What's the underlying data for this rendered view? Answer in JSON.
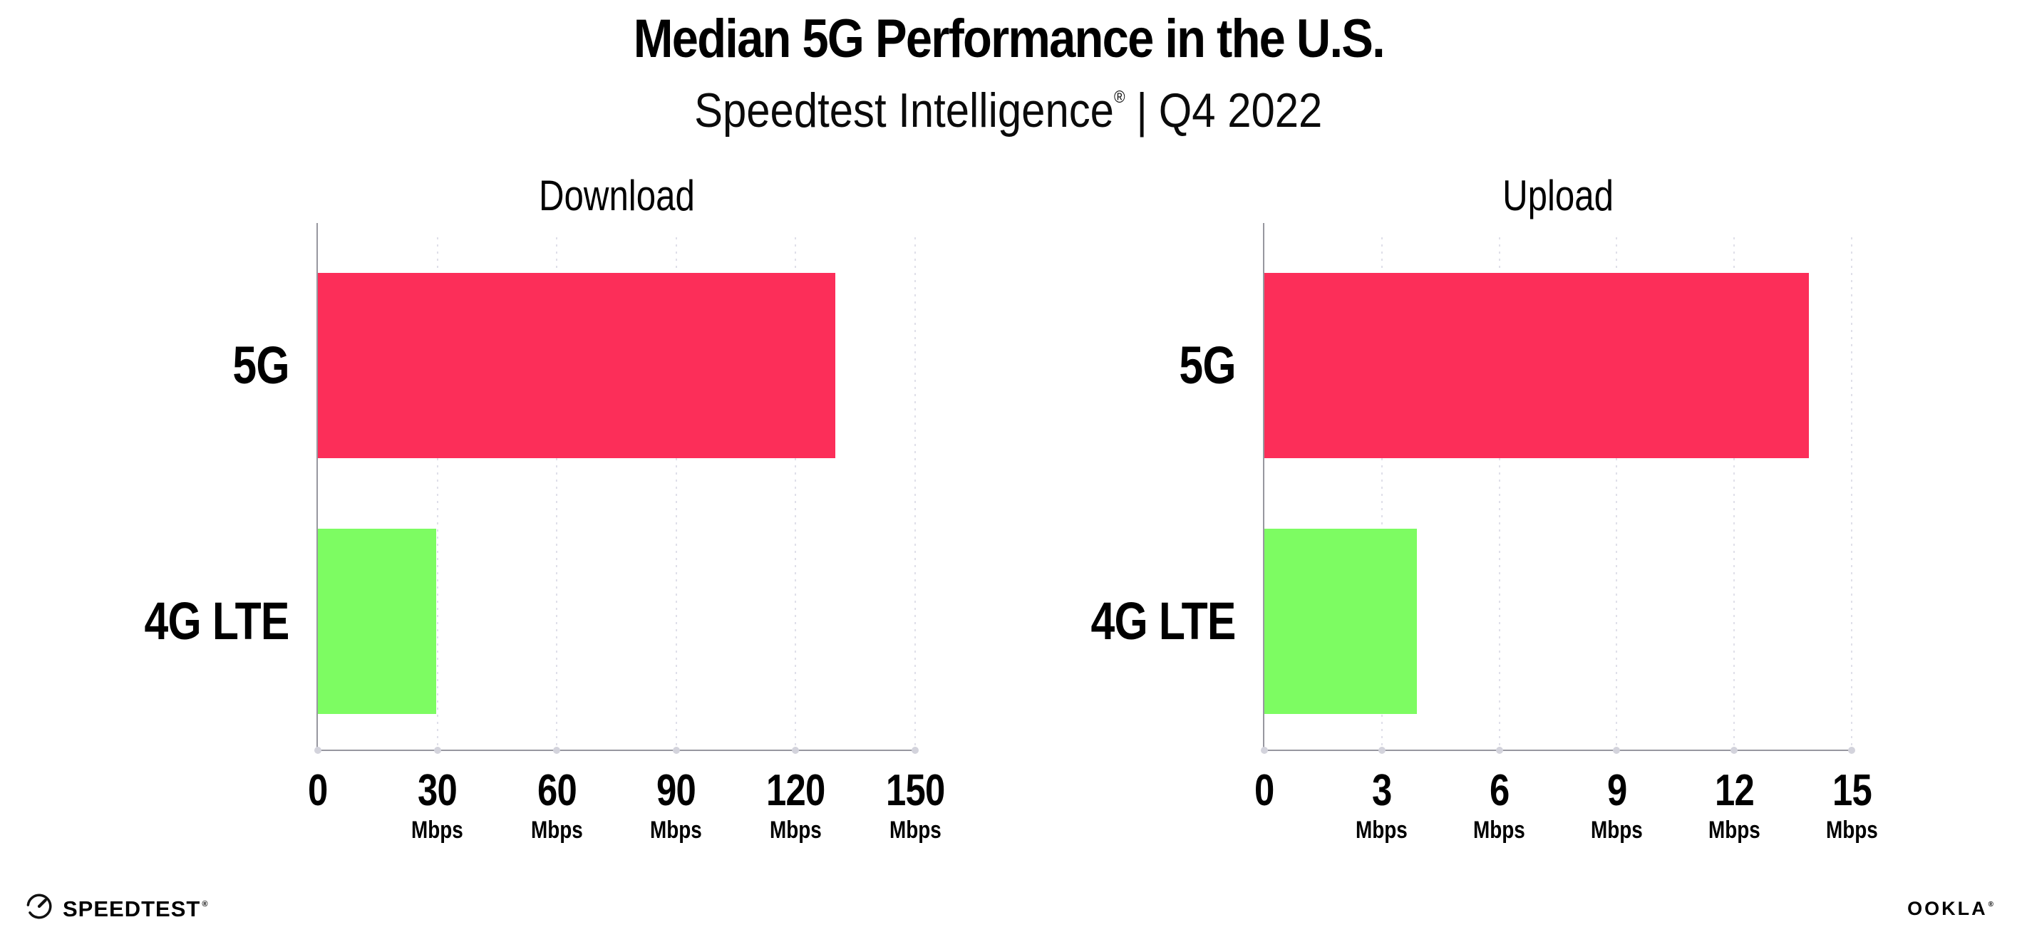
{
  "header": {
    "title": "Median 5G Performance in the U.S.",
    "subtitle": {
      "brand": "Speedtest Intelligence",
      "reg": "®",
      "divider": "|",
      "period": "Q4 2022"
    }
  },
  "chart_data": [
    {
      "type": "bar",
      "orientation": "horizontal",
      "title": "Download",
      "categories": [
        "5G",
        "4G LTE"
      ],
      "values": [
        130,
        29.8
      ],
      "unit": "Mbps",
      "xlim": [
        0,
        150
      ],
      "xticks": [
        0,
        30,
        60,
        90,
        120,
        150
      ],
      "bar_colors": [
        "#FC2E59",
        "#7DFC62"
      ],
      "grid": "dotted-vertical",
      "legend": "none"
    },
    {
      "type": "bar",
      "orientation": "horizontal",
      "title": "Upload",
      "categories": [
        "5G",
        "4G LTE"
      ],
      "values": [
        13.9,
        3.9
      ],
      "unit": "Mbps",
      "xlim": [
        0,
        15
      ],
      "xticks": [
        0,
        3,
        6,
        9,
        12,
        15
      ],
      "bar_colors": [
        "#FC2E59",
        "#7DFC62"
      ],
      "grid": "dotted-vertical",
      "legend": "none"
    }
  ],
  "colors": {
    "bar_5g": "#FC2E59",
    "bar_4g_lte": "#7DFC62",
    "axis_line": "#97979F",
    "axis_tick_dot": "#D3D3DC",
    "gridline": "#DFDFE9",
    "text": "#000000",
    "background": "#FFFFFF"
  },
  "footer": {
    "speedtest": {
      "icon": "speedtest-gauge-icon",
      "label": "SPEEDTEST",
      "reg": "®"
    },
    "ookla": {
      "label": "OOKLA",
      "reg": "®"
    }
  }
}
